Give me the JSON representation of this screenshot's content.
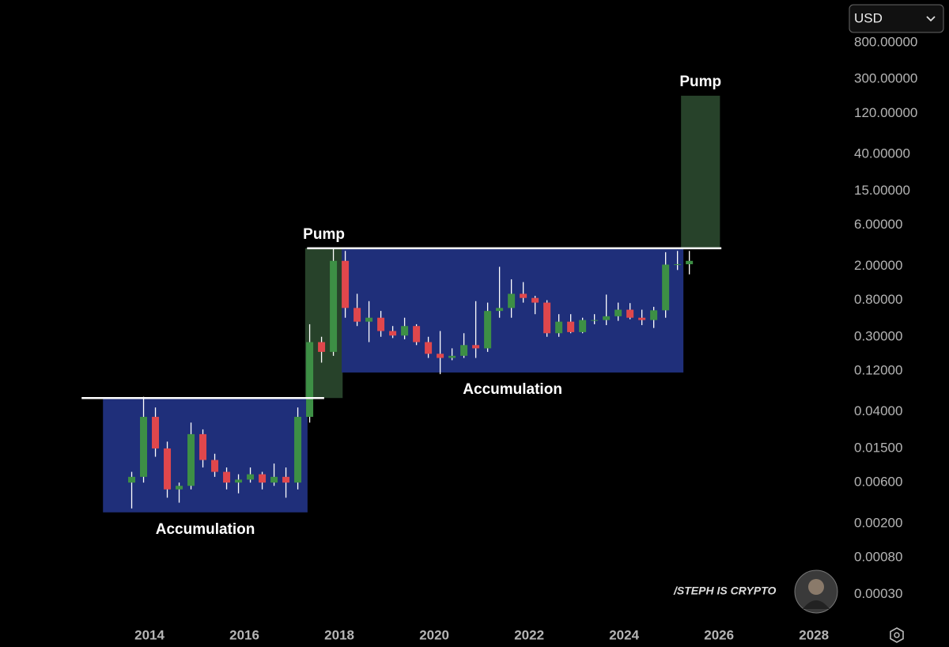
{
  "chart_data": {
    "type": "candlestick",
    "log_scale": true,
    "grid": false,
    "up_color": "#3d8f45",
    "down_color": "#e0474c",
    "wick_color": "#ffffff",
    "xlim": [
      2010.85,
      2028.68
    ],
    "xticks": [
      2014,
      2016,
      2018,
      2020,
      2022,
      2024,
      2026,
      2028
    ],
    "ylim": [
      0.000132,
      2517
    ],
    "yticks": [
      {
        "value": 800,
        "label": "800.00000"
      },
      {
        "value": 300,
        "label": "300.00000"
      },
      {
        "value": 120,
        "label": "120.00000"
      },
      {
        "value": 40,
        "label": "40.00000"
      },
      {
        "value": 15,
        "label": "15.00000"
      },
      {
        "value": 6,
        "label": "6.00000"
      },
      {
        "value": 2,
        "label": "2.00000"
      },
      {
        "value": 0.8,
        "label": "0.80000"
      },
      {
        "value": 0.3,
        "label": "0.30000"
      },
      {
        "value": 0.12,
        "label": "0.12000"
      },
      {
        "value": 0.04,
        "label": "0.04000"
      },
      {
        "value": 0.015,
        "label": "0.01500"
      },
      {
        "value": 0.006,
        "label": "0.00600"
      },
      {
        "value": 0.002,
        "label": "0.00200"
      },
      {
        "value": 0.0008,
        "label": "0.00080"
      },
      {
        "value": 0.0003,
        "label": "0.00030"
      }
    ],
    "x": [
      2013.625,
      2013.875,
      2014.125,
      2014.375,
      2014.625,
      2014.875,
      2015.125,
      2015.375,
      2015.625,
      2015.875,
      2016.125,
      2016.375,
      2016.625,
      2016.875,
      2017.125,
      2017.375,
      2017.625,
      2017.875,
      2018.125,
      2018.375,
      2018.625,
      2018.875,
      2019.125,
      2019.375,
      2019.625,
      2019.875,
      2020.125,
      2020.375,
      2020.625,
      2020.875,
      2021.125,
      2021.375,
      2021.625,
      2021.875,
      2022.125,
      2022.375,
      2022.625,
      2022.875,
      2023.125,
      2023.375,
      2023.625,
      2023.875,
      2024.125,
      2024.375,
      2024.625,
      2024.875,
      2025.125,
      2025.375
    ],
    "open": [
      0.006,
      0.007,
      0.035,
      0.015,
      0.005,
      0.0055,
      0.022,
      0.011,
      0.008,
      0.006,
      0.0065,
      0.0075,
      0.006,
      0.007,
      0.006,
      0.035,
      0.26,
      0.2,
      2.3,
      0.65,
      0.45,
      0.5,
      0.35,
      0.31,
      0.4,
      0.26,
      0.19,
      0.17,
      0.18,
      0.24,
      0.22,
      0.6,
      0.65,
      0.95,
      0.85,
      0.75,
      0.33,
      0.45,
      0.34,
      0.47,
      0.47,
      0.52,
      0.62,
      0.5,
      0.47,
      0.61,
      2.08,
      2.1
    ],
    "high": [
      0.008,
      0.06,
      0.045,
      0.018,
      0.006,
      0.03,
      0.025,
      0.013,
      0.009,
      0.0075,
      0.009,
      0.008,
      0.01,
      0.009,
      0.045,
      0.42,
      0.3,
      3.2,
      3.0,
      0.95,
      0.78,
      0.6,
      0.4,
      0.5,
      0.42,
      0.3,
      0.35,
      0.22,
      0.33,
      0.78,
      0.75,
      1.96,
      1.4,
      1.3,
      0.9,
      0.8,
      0.55,
      0.55,
      0.5,
      0.55,
      0.93,
      0.75,
      0.74,
      0.62,
      0.67,
      2.9,
      3.0,
      3.0
    ],
    "low": [
      0.003,
      0.006,
      0.012,
      0.004,
      0.0035,
      0.005,
      0.009,
      0.007,
      0.005,
      0.0045,
      0.006,
      0.005,
      0.0055,
      0.004,
      0.005,
      0.03,
      0.15,
      0.18,
      0.5,
      0.4,
      0.26,
      0.3,
      0.29,
      0.28,
      0.24,
      0.17,
      0.11,
      0.16,
      0.17,
      0.17,
      0.2,
      0.5,
      0.5,
      0.75,
      0.55,
      0.3,
      0.3,
      0.33,
      0.33,
      0.42,
      0.41,
      0.46,
      0.48,
      0.41,
      0.38,
      0.5,
      1.8,
      1.6
    ],
    "close": [
      0.007,
      0.035,
      0.015,
      0.005,
      0.0055,
      0.022,
      0.011,
      0.008,
      0.006,
      0.0065,
      0.0075,
      0.006,
      0.007,
      0.006,
      0.035,
      0.26,
      0.2,
      2.3,
      0.65,
      0.45,
      0.5,
      0.35,
      0.31,
      0.4,
      0.26,
      0.19,
      0.17,
      0.18,
      0.24,
      0.22,
      0.6,
      0.65,
      0.95,
      0.85,
      0.75,
      0.33,
      0.45,
      0.34,
      0.47,
      0.47,
      0.52,
      0.62,
      0.5,
      0.47,
      0.61,
      2.08,
      2.1,
      2.3
    ],
    "zones": [
      {
        "label": "Accumulation",
        "color": "#1f2f7a",
        "x": [
          2013.02,
          2017.33
        ],
        "y": [
          0.0027,
          0.058
        ]
      },
      {
        "label": "Pump",
        "color": "#27422a",
        "x": [
          2017.28,
          2018.07
        ],
        "y": [
          0.058,
          3.22
        ]
      },
      {
        "label": "Accumulation",
        "color": "#1f2f7a",
        "x": [
          2018.05,
          2025.25
        ],
        "y": [
          0.115,
          3.22
        ]
      },
      {
        "label": "Pump",
        "color": "#27422a",
        "x": [
          2025.2,
          2026.02
        ],
        "y": [
          3.22,
          193
        ]
      }
    ],
    "lines": [
      {
        "color": "#ffffff",
        "y": 0.058,
        "x": [
          2012.57,
          2017.68
        ]
      },
      {
        "color": "#ffffff",
        "y": 3.22,
        "x": [
          2017.32,
          2026.05
        ]
      }
    ]
  },
  "ui": {
    "currency": "USD",
    "watermark": "/STEPH IS CRYPTO"
  }
}
